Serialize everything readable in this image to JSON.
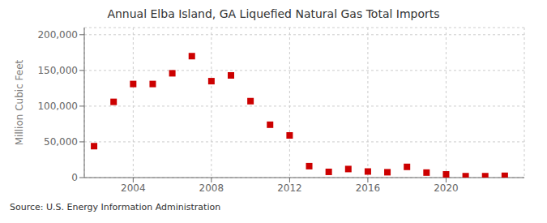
{
  "chart_data": {
    "type": "scatter",
    "title": "Annual Elba Island, GA Liquefied Natural Gas Total Imports",
    "ylabel": "Million Cubic Feet",
    "annotations": [
      "Source: U.S. Energy Information Administration"
    ],
    "x": [
      2002,
      2003,
      2004,
      2005,
      2006,
      2007,
      2008,
      2009,
      2010,
      2011,
      2012,
      2013,
      2014,
      2015,
      2016,
      2017,
      2018,
      2019,
      2020,
      2021,
      2022,
      2023
    ],
    "values": [
      44000,
      106000,
      131000,
      131000,
      146000,
      170000,
      135000,
      143000,
      107000,
      74000,
      59000,
      16000,
      8000,
      12000,
      8500,
      7500,
      15000,
      7000,
      4500,
      2000,
      2000,
      2500
    ],
    "color": "#cc0000",
    "marker": "square",
    "xlim": [
      2001.5,
      2024.0
    ],
    "xticks": [
      2004,
      2008,
      2012,
      2016,
      2020
    ],
    "ylim": [
      0,
      210000
    ],
    "yticks": [
      0,
      {
        "value": 50000,
        "label": "50,000"
      },
      {
        "value": 100000,
        "label": "100,000"
      },
      {
        "value": 150000,
        "label": "150,000"
      },
      {
        "value": 200000,
        "label": "200,000"
      }
    ],
    "grid": true
  }
}
